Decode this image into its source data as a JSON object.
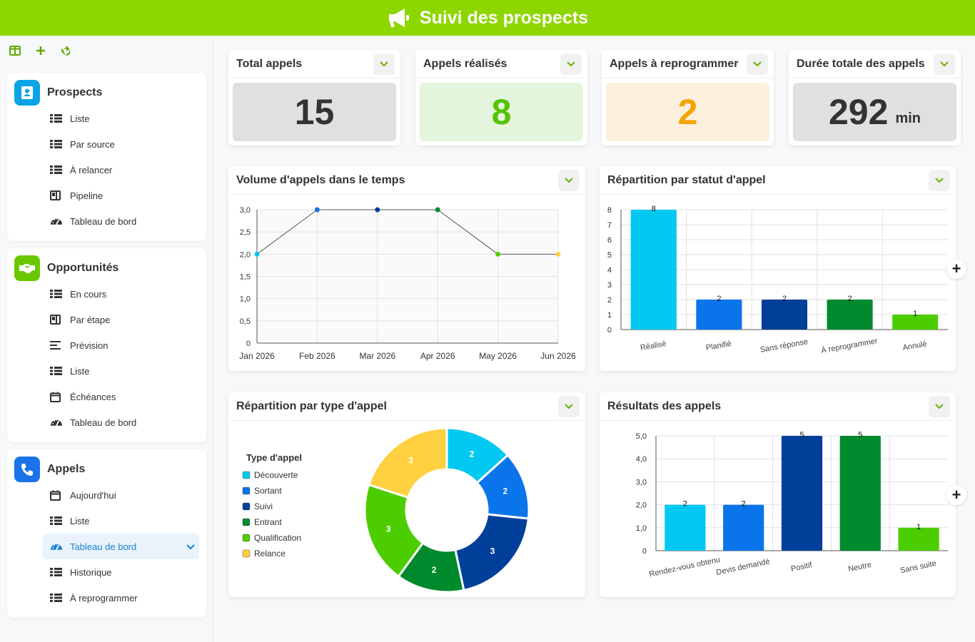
{
  "header": {
    "title": "Suivi des prospects",
    "icon": "megaphone-icon"
  },
  "colors": {
    "header": "#8ed600",
    "accent_green": "#6ab000",
    "accent_blue": "#1a7fd4"
  },
  "sidebar": {
    "groups": [
      {
        "title": "Prospects",
        "icon": "contact-icon",
        "color": "#0aa4e6",
        "items": [
          {
            "label": "Liste",
            "icon": "list-icon"
          },
          {
            "label": "Par source",
            "icon": "list-icon"
          },
          {
            "label": "À relancer",
            "icon": "list-icon"
          },
          {
            "label": "Pipeline",
            "icon": "kanban-icon"
          },
          {
            "label": "Tableau de bord",
            "icon": "gauge-icon"
          }
        ]
      },
      {
        "title": "Opportunités",
        "icon": "handshake-icon",
        "color": "#6ac800",
        "items": [
          {
            "label": "En cours",
            "icon": "list-icon"
          },
          {
            "label": "Par étape",
            "icon": "kanban-icon"
          },
          {
            "label": "Prévision",
            "icon": "lines-icon"
          },
          {
            "label": "Liste",
            "icon": "list-icon"
          },
          {
            "label": "Échéances",
            "icon": "calendar-icon"
          },
          {
            "label": "Tableau de bord",
            "icon": "gauge-icon"
          }
        ]
      },
      {
        "title": "Appels",
        "icon": "phone-icon",
        "color": "#1a73e8",
        "items": [
          {
            "label": "Aujourd'hui",
            "icon": "calendar-icon"
          },
          {
            "label": "Liste",
            "icon": "list-icon"
          },
          {
            "label": "Tableau de bord",
            "icon": "gauge-icon",
            "active": true
          },
          {
            "label": "Historique",
            "icon": "list-icon"
          },
          {
            "label": "À reprogrammer",
            "icon": "list-icon"
          }
        ]
      }
    ]
  },
  "kpis": [
    {
      "title": "Total appels",
      "value": "15",
      "unit": "",
      "bg": "#e0e0e0",
      "color": "#333333"
    },
    {
      "title": "Appels réalisés",
      "value": "8",
      "unit": "",
      "bg": "#e3f5dc",
      "color": "#56c200"
    },
    {
      "title": "Appels à reprogrammer",
      "value": "2",
      "unit": "",
      "bg": "#fbf0dc",
      "color": "#f5a300"
    },
    {
      "title": "Durée totale des appels",
      "value": "292",
      "unit": "min",
      "bg": "#e0e0e0",
      "color": "#333333"
    }
  ],
  "charts": {
    "volume": {
      "title": "Volume d'appels dans le temps"
    },
    "statut": {
      "title": "Répartition par statut d'appel"
    },
    "type": {
      "title": "Répartition par type d'appel"
    },
    "resultats": {
      "title": "Résultats des appels"
    }
  },
  "chart_data": [
    {
      "type": "line",
      "title": "Volume d'appels dans le temps",
      "x": [
        "Jan 2026",
        "Feb 2026",
        "Mar 2026",
        "Apr 2026",
        "May 2026",
        "Jun 2026"
      ],
      "values": [
        2,
        3,
        3,
        3,
        2,
        2
      ],
      "point_colors": [
        "#00c8f0",
        "#1a73e8",
        "#003f9a",
        "#008a2e",
        "#4ccd00",
        "#ffd040"
      ],
      "yticks": [
        "0",
        "0,5",
        "1,0",
        "1,5",
        "2,0",
        "2,5",
        "3,0"
      ],
      "ylim": [
        0,
        3
      ],
      "grid": true
    },
    {
      "type": "bar",
      "title": "Répartition par statut d'appel",
      "categories": [
        "Réalisé",
        "Planifié",
        "Sans réponse",
        "À reprogrammer",
        "Annulé"
      ],
      "values": [
        8,
        2,
        2,
        2,
        1
      ],
      "colors": [
        "#00c8f0",
        "#0a74ea",
        "#003f9a",
        "#008a2e",
        "#4ccd00"
      ],
      "yticks": [
        "0",
        "1",
        "2",
        "3",
        "4",
        "5",
        "6",
        "7",
        "8"
      ],
      "ylim": [
        0,
        8
      ],
      "grid": true
    },
    {
      "type": "pie",
      "title": "Répartition par type d'appel",
      "legend_title": "Type d'appel",
      "categories": [
        "Découverte",
        "Sortant",
        "Suivi",
        "Entrant",
        "Qualification",
        "Relance"
      ],
      "values": [
        2,
        2,
        3,
        2,
        3,
        3
      ],
      "colors": [
        "#00c8f0",
        "#0a74ea",
        "#003f9a",
        "#008a2e",
        "#4ccd00",
        "#ffd040"
      ],
      "legend_position": "left"
    },
    {
      "type": "bar",
      "title": "Résultats des appels",
      "categories": [
        "Rendez-vous obtenu",
        "Devis demandé",
        "Positif",
        "Neutre",
        "Sans suite"
      ],
      "values": [
        2,
        2,
        5,
        5,
        1
      ],
      "colors": [
        "#00c8f0",
        "#0a74ea",
        "#003f9a",
        "#008a2e",
        "#4ccd00"
      ],
      "yticks": [
        "0",
        "1,0",
        "2,0",
        "3,0",
        "4,0",
        "5,0"
      ],
      "ylim": [
        0,
        5
      ],
      "grid": true
    }
  ]
}
